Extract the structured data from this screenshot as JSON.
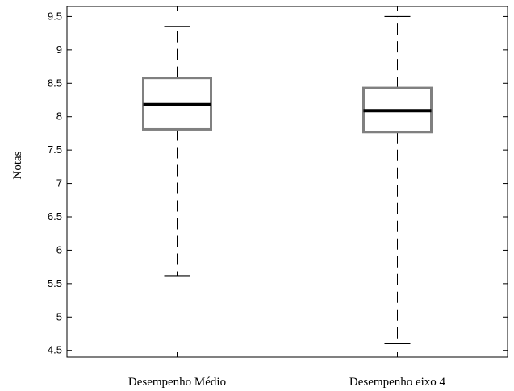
{
  "chart_data": {
    "type": "boxplot",
    "title": "",
    "xlabel": "",
    "ylabel": "Notas",
    "ylim": [
      4.4,
      9.65
    ],
    "yticks": [
      "4.5",
      "5",
      "5.5",
      "6",
      "6.5",
      "7",
      "7.5",
      "8",
      "8.5",
      "9",
      "9.5"
    ],
    "grid": false,
    "categories": [
      "Desempenho Médio",
      "Desempenho eixo 4"
    ],
    "boxes": [
      {
        "min": 5.62,
        "q1": 7.81,
        "median": 8.18,
        "q3": 8.58,
        "max": 9.35
      },
      {
        "min": 4.6,
        "q1": 7.77,
        "median": 8.09,
        "q3": 8.43,
        "max": 9.5
      }
    ],
    "colors": {
      "box": "#808080",
      "median": "#000000",
      "whisker": "#000000"
    }
  }
}
